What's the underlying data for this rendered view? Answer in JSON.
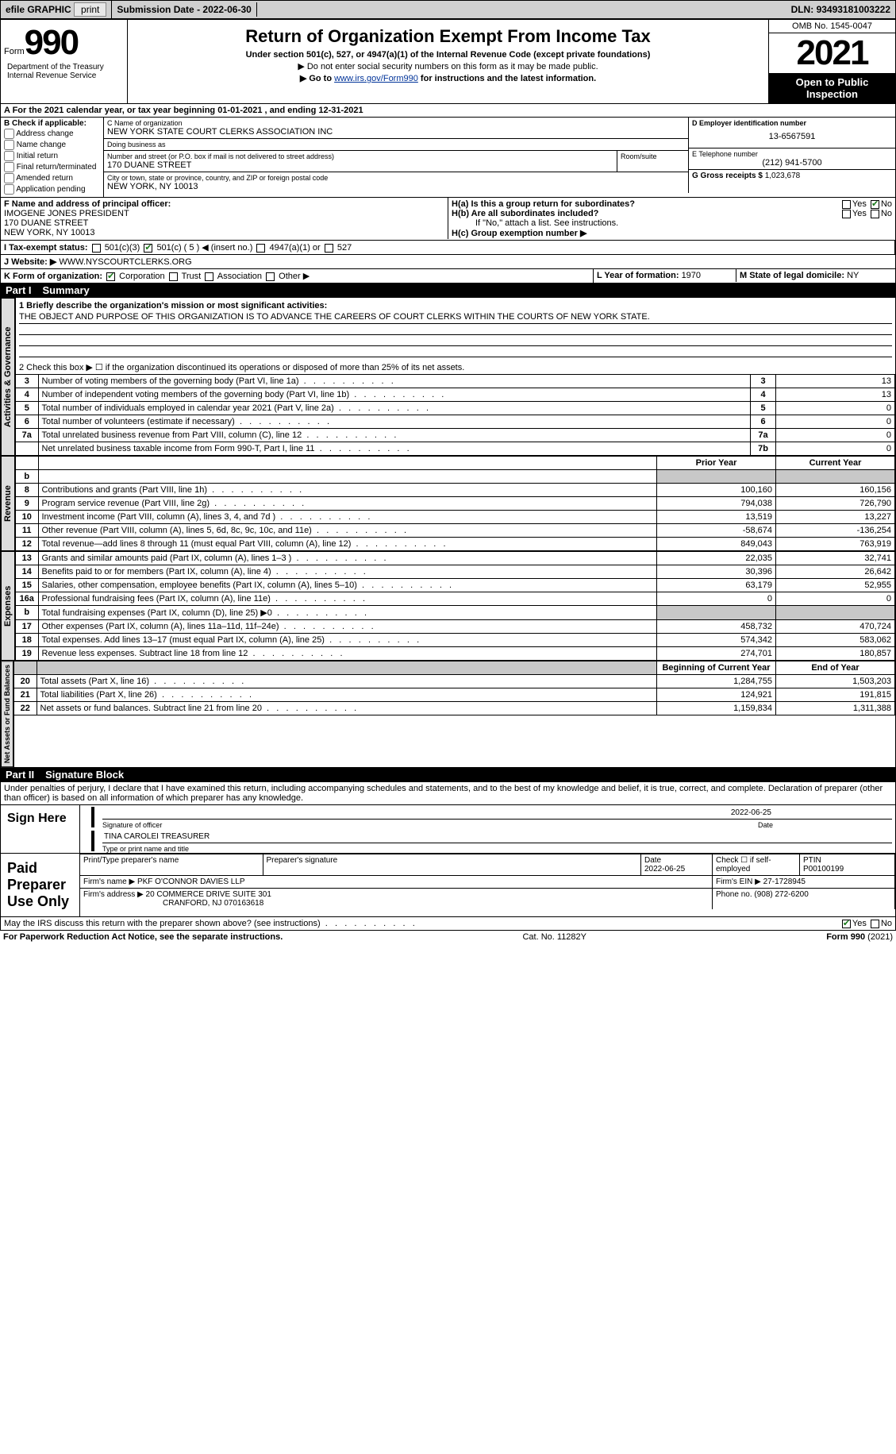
{
  "topbar": {
    "efile": "efile GRAPHIC",
    "print": "print",
    "subdate_lbl": "Submission Date - ",
    "subdate": "2022-06-30",
    "dln_lbl": "DLN: ",
    "dln": "93493181003222"
  },
  "hdr": {
    "form_pre": "Form",
    "form_no": "990",
    "title": "Return of Organization Exempt From Income Tax",
    "sub": "Under section 501(c), 527, or 4947(a)(1) of the Internal Revenue Code (except private foundations)",
    "note1": "▶ Do not enter social security numbers on this form as it may be made public.",
    "note2_pre": "▶ Go to ",
    "note2_link": "www.irs.gov/Form990",
    "note2_post": " for instructions and the latest information.",
    "dept": "Department of the Treasury\nInternal Revenue Service",
    "omb": "OMB No. 1545-0047",
    "year": "2021",
    "open": "Open to Public Inspection"
  },
  "periodA": "A  For the 2021 calendar year, or tax year beginning 01-01-2021   , and ending 12-31-2021",
  "blockB": {
    "hdr": "B Check if applicable:",
    "addr": "Address change",
    "name": "Name change",
    "init": "Initial return",
    "final": "Final return/terminated",
    "amend": "Amended return",
    "app": "Application pending"
  },
  "blockC": {
    "name_lbl": "C Name of organization",
    "name": "NEW YORK STATE COURT CLERKS ASSOCIATION INC",
    "dba_lbl": "Doing business as",
    "dba": "",
    "street_lbl": "Number and street (or P.O. box if mail is not delivered to street address)",
    "room_lbl": "Room/suite",
    "street": "170 DUANE STREET",
    "city_lbl": "City or town, state or province, country, and ZIP or foreign postal code",
    "city": "NEW YORK, NY  10013"
  },
  "blockD": {
    "lbl": "D Employer identification number",
    "val": "13-6567591"
  },
  "blockE": {
    "lbl": "E Telephone number",
    "val": "(212) 941-5700"
  },
  "blockG": {
    "lbl": "G Gross receipts $ ",
    "val": "1,023,678"
  },
  "blockF": {
    "lbl": "F Name and address of principal officer:",
    "l1": "IMOGENE JONES PRESIDENT",
    "l2": "170 DUANE STREET",
    "l3": "NEW YORK, NY  10013"
  },
  "blockH": {
    "ha": "H(a)  Is this a group return for subordinates?",
    "hb": "H(b)  Are all subordinates included?",
    "hb_note": "If \"No,\" attach a list. See instructions.",
    "hc": "H(c)  Group exemption number ▶",
    "yes": "Yes",
    "no": "No"
  },
  "blockI": {
    "lbl": "I   Tax-exempt status:",
    "o1": "501(c)(3)",
    "o2": "501(c) ( 5 ) ◀ (insert no.)",
    "o3": "4947(a)(1) or",
    "o4": "527"
  },
  "blockJ": {
    "lbl": "J   Website: ▶",
    "val": "WWW.NYSCOURTCLERKS.ORG"
  },
  "blockK": {
    "lbl": "K Form of organization:",
    "corp": "Corporation",
    "trust": "Trust",
    "assoc": "Association",
    "other": "Other ▶"
  },
  "blockL": {
    "lbl": "L Year of formation: ",
    "val": "1970"
  },
  "blockM": {
    "lbl": "M State of legal domicile: ",
    "val": "NY"
  },
  "part1": {
    "num": "Part I",
    "title": "Summary"
  },
  "summary": {
    "tab_activities": "Activities & Governance",
    "tab_revenue": "Revenue",
    "tab_expenses": "Expenses",
    "tab_net": "Net Assets or Fund Balances",
    "l1_lbl": "1  Briefly describe the organization's mission or most significant activities:",
    "l1_val": "THE OBJECT AND PURPOSE OF THIS ORGANIZATION IS TO ADVANCE THE CAREERS OF COURT CLERKS WITHIN THE COURTS OF NEW YORK STATE.",
    "l2": "2   Check this box ▶ ☐  if the organization discontinued its operations or disposed of more than 25% of its net assets.",
    "rows_top": [
      {
        "n": "3",
        "d": "Number of voting members of the governing body (Part VI, line 1a)",
        "b": "3",
        "v": "13"
      },
      {
        "n": "4",
        "d": "Number of independent voting members of the governing body (Part VI, line 1b)",
        "b": "4",
        "v": "13"
      },
      {
        "n": "5",
        "d": "Total number of individuals employed in calendar year 2021 (Part V, line 2a)",
        "b": "5",
        "v": "0"
      },
      {
        "n": "6",
        "d": "Total number of volunteers (estimate if necessary)",
        "b": "6",
        "v": "0"
      },
      {
        "n": "7a",
        "d": "Total unrelated business revenue from Part VIII, column (C), line 12",
        "b": "7a",
        "v": "0"
      },
      {
        "n": "",
        "d": "Net unrelated business taxable income from Form 990-T, Part I, line 11",
        "b": "7b",
        "v": "0"
      }
    ],
    "col_prior": "Prior Year",
    "col_curr": "Current Year",
    "rev_rows": [
      {
        "n": "b",
        "d": "",
        "p": "",
        "c": "",
        "shade": true,
        "hdr": true
      },
      {
        "n": "8",
        "d": "Contributions and grants (Part VIII, line 1h)",
        "p": "100,160",
        "c": "160,156"
      },
      {
        "n": "9",
        "d": "Program service revenue (Part VIII, line 2g)",
        "p": "794,038",
        "c": "726,790"
      },
      {
        "n": "10",
        "d": "Investment income (Part VIII, column (A), lines 3, 4, and 7d )",
        "p": "13,519",
        "c": "13,227"
      },
      {
        "n": "11",
        "d": "Other revenue (Part VIII, column (A), lines 5, 6d, 8c, 9c, 10c, and 11e)",
        "p": "-58,674",
        "c": "-136,254"
      },
      {
        "n": "12",
        "d": "Total revenue—add lines 8 through 11 (must equal Part VIII, column (A), line 12)",
        "p": "849,043",
        "c": "763,919"
      }
    ],
    "exp_rows": [
      {
        "n": "13",
        "d": "Grants and similar amounts paid (Part IX, column (A), lines 1–3 )",
        "p": "22,035",
        "c": "32,741"
      },
      {
        "n": "14",
        "d": "Benefits paid to or for members (Part IX, column (A), line 4)",
        "p": "30,396",
        "c": "26,642"
      },
      {
        "n": "15",
        "d": "Salaries, other compensation, employee benefits (Part IX, column (A), lines 5–10)",
        "p": "63,179",
        "c": "52,955"
      },
      {
        "n": "16a",
        "d": "Professional fundraising fees (Part IX, column (A), line 11e)",
        "p": "0",
        "c": "0"
      },
      {
        "n": "b",
        "d": "Total fundraising expenses (Part IX, column (D), line 25) ▶0",
        "p": "",
        "c": "",
        "shade": true
      },
      {
        "n": "17",
        "d": "Other expenses (Part IX, column (A), lines 11a–11d, 11f–24e)",
        "p": "458,732",
        "c": "470,724"
      },
      {
        "n": "18",
        "d": "Total expenses. Add lines 13–17 (must equal Part IX, column (A), line 25)",
        "p": "574,342",
        "c": "583,062"
      },
      {
        "n": "19",
        "d": "Revenue less expenses. Subtract line 18 from line 12",
        "p": "274,701",
        "c": "180,857"
      }
    ],
    "net_hdr_p": "Beginning of Current Year",
    "net_hdr_c": "End of Year",
    "net_rows": [
      {
        "n": "20",
        "d": "Total assets (Part X, line 16)",
        "p": "1,284,755",
        "c": "1,503,203"
      },
      {
        "n": "21",
        "d": "Total liabilities (Part X, line 26)",
        "p": "124,921",
        "c": "191,815"
      },
      {
        "n": "22",
        "d": "Net assets or fund balances. Subtract line 21 from line 20",
        "p": "1,159,834",
        "c": "1,311,388"
      }
    ]
  },
  "part2": {
    "num": "Part II",
    "title": "Signature Block"
  },
  "penalties": "Under penalties of perjury, I declare that I have examined this return, including accompanying schedules and statements, and to the best of my knowledge and belief, it is true, correct, and complete. Declaration of preparer (other than officer) is based on all information of which preparer has any knowledge.",
  "sign": {
    "here": "Sign Here",
    "sig_officer": "Signature of officer",
    "date_lbl": "Date",
    "sig_date": "2022-06-25",
    "name_title": "TINA CAROLEI  TREASURER",
    "name_title_lbl": "Type or print name and title"
  },
  "paid": {
    "lbl": "Paid Preparer Use Only",
    "col_name": "Print/Type preparer's name",
    "col_sig": "Preparer's signature",
    "col_date": "Date",
    "date": "2022-06-25",
    "col_check": "Check ☐ if self-employed",
    "col_ptin": "PTIN",
    "ptin": "P00100199",
    "firm_name_lbl": "Firm's name    ▶",
    "firm_name": "PKF O'CONNOR DAVIES LLP",
    "firm_ein_lbl": "Firm's EIN ▶",
    "firm_ein": "27-1728945",
    "firm_addr_lbl": "Firm's address ▶",
    "firm_addr1": "20 COMMERCE DRIVE SUITE 301",
    "firm_addr2": "CRANFORD, NJ  070163618",
    "phone_lbl": "Phone no. ",
    "phone": "(908) 272-6200"
  },
  "discuss": "May the IRS discuss this return with the preparer shown above? (see instructions)",
  "footer": {
    "l": "For Paperwork Reduction Act Notice, see the separate instructions.",
    "m": "Cat. No. 11282Y",
    "r": "Form 990 (2021)"
  }
}
